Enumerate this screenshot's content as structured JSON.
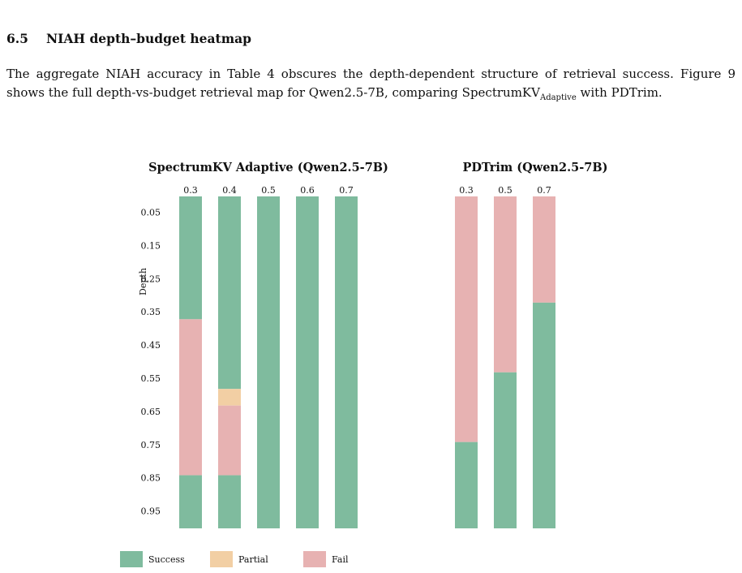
{
  "section": {
    "number": "6.5",
    "title": "NIAH depth–budget heatmap"
  },
  "paragraph": [
    "The aggregate NIAH accuracy in Table 4 obscures the depth-dependent structure of retrieval success. Figure 9 shows the full depth-vs-budget retrieval map for Qwen2.5-7B, comparing SpectrumKV",
    "Adaptive",
    " with PDTrim."
  ],
  "figure": {
    "ylabel": "Depth",
    "ylim": [
      0,
      1
    ],
    "yticks": [
      0.05,
      0.15,
      0.25,
      0.35,
      0.45,
      0.55,
      0.65,
      0.75,
      0.85,
      0.95
    ],
    "legend": [
      {
        "name": "Success",
        "color": "#7fbb9e"
      },
      {
        "name": "Partial",
        "color": "#f2cfa4"
      },
      {
        "name": "Fail",
        "color": "#e7b2b2"
      }
    ],
    "panels": [
      {
        "title": "SpectrumKV Adaptive (Qwen2.5-7B)",
        "columns": [
          {
            "label": "0.3",
            "segments": [
              {
                "color": "#7fbb9e",
                "value": 0.37
              },
              {
                "color": "#e7b2b2",
                "value": 0.47
              },
              {
                "color": "#7fbb9e",
                "value": 0.16
              }
            ]
          },
          {
            "label": "0.4",
            "segments": [
              {
                "color": "#7fbb9e",
                "value": 0.58
              },
              {
                "color": "#f2cfa4",
                "value": 0.05
              },
              {
                "color": "#e7b2b2",
                "value": 0.21
              },
              {
                "color": "#7fbb9e",
                "value": 0.16
              }
            ]
          },
          {
            "label": "0.5",
            "segments": [
              {
                "color": "#7fbb9e",
                "value": 1.0
              }
            ]
          },
          {
            "label": "0.6",
            "segments": [
              {
                "color": "#7fbb9e",
                "value": 1.0
              }
            ]
          },
          {
            "label": "0.7",
            "segments": [
              {
                "color": "#7fbb9e",
                "value": 1.0
              }
            ]
          }
        ]
      },
      {
        "title": "PDTrim (Qwen2.5-7B)",
        "columns": [
          {
            "label": "0.3",
            "segments": [
              {
                "color": "#e7b2b2",
                "value": 0.74
              },
              {
                "color": "#7fbb9e",
                "value": 0.26
              }
            ]
          },
          {
            "label": "0.5",
            "segments": [
              {
                "color": "#e7b2b2",
                "value": 0.53
              },
              {
                "color": "#7fbb9e",
                "value": 0.47
              }
            ]
          },
          {
            "label": "0.7",
            "segments": [
              {
                "color": "#e7b2b2",
                "value": 0.32
              },
              {
                "color": "#7fbb9e",
                "value": 0.68
              }
            ]
          }
        ]
      }
    ]
  }
}
